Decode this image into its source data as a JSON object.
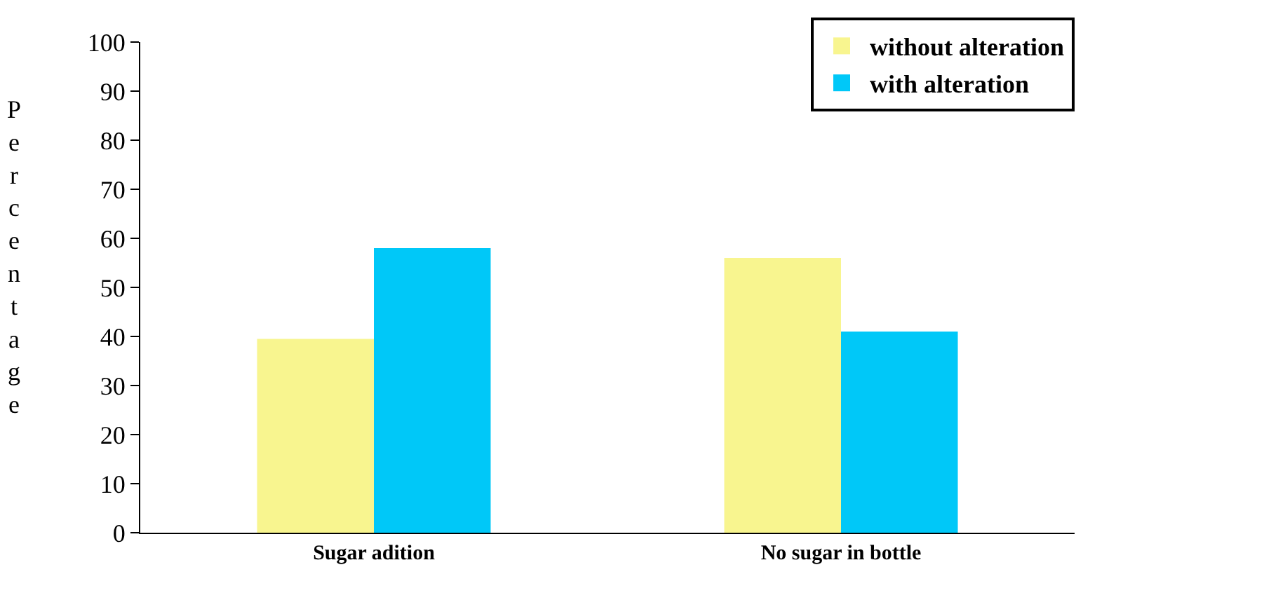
{
  "chart_data": {
    "type": "bar",
    "ylabel": "Percentage",
    "categories": [
      "Sugar adition",
      "No sugar in bottle"
    ],
    "series": [
      {
        "name": "without alteration",
        "color": "#f8f58f",
        "values": [
          39.5,
          56
        ]
      },
      {
        "name": "with alteration",
        "color": "#00c8f8",
        "values": [
          58,
          41
        ]
      }
    ],
    "ylim": [
      0,
      100
    ],
    "yticks": [
      0,
      10,
      20,
      30,
      40,
      50,
      60,
      70,
      80,
      90,
      100
    ],
    "grid": false,
    "legend": "top right"
  }
}
